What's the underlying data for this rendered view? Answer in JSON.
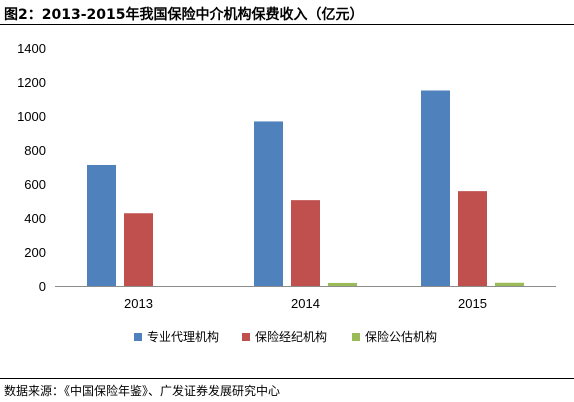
{
  "title": "图2：2013-2015年我国保险中介机构保费收入（亿元）",
  "source": "数据来源：《中国保险年鉴》、广发证券发展研究中心",
  "chart_data": {
    "type": "bar",
    "categories": [
      "2013",
      "2014",
      "2015"
    ],
    "series": [
      {
        "name": "专业代理机构",
        "color": "#4F81BD",
        "values": [
          712,
          968,
          1150
        ]
      },
      {
        "name": "保险经纪机构",
        "color": "#C0504D",
        "values": [
          428,
          505,
          558
        ]
      },
      {
        "name": "保险公估机构",
        "color": "#9BBB59",
        "values": [
          0,
          18,
          19
        ]
      }
    ],
    "ylim": [
      0,
      1400
    ],
    "yticks": [
      0,
      200,
      400,
      600,
      800,
      1000,
      1200,
      1400
    ],
    "grid": false,
    "legend_position": "bottom"
  }
}
